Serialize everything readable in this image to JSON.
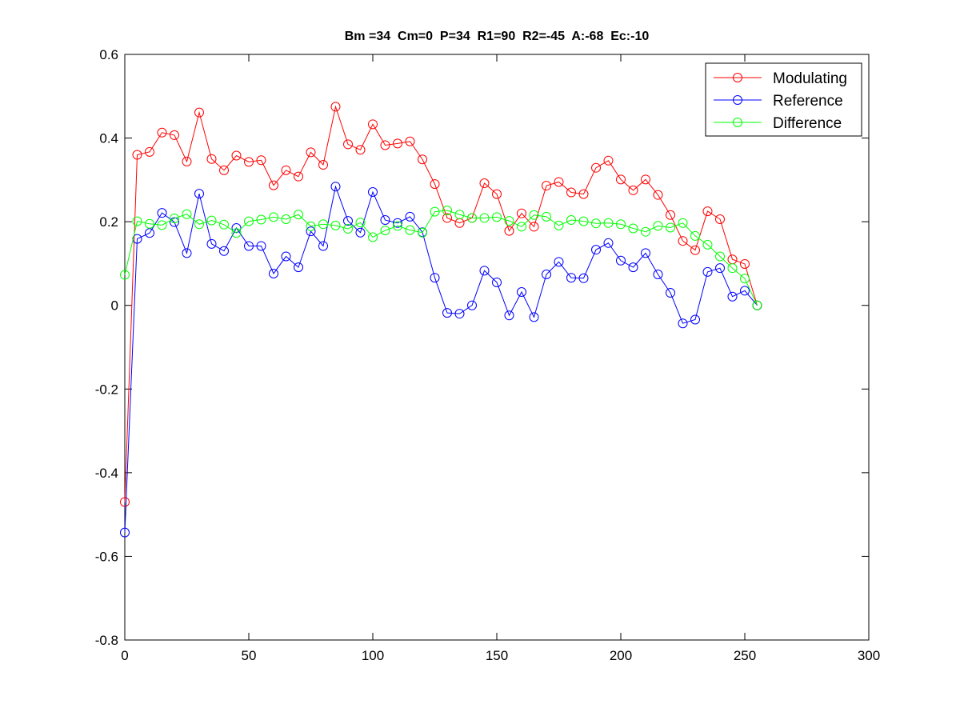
{
  "chart_data": {
    "type": "line",
    "title": "Bm =34  Cm=0  P=34  R1=90  R2=-45  A:-68  Ec:-10",
    "xlabel": "",
    "ylabel": "",
    "xlim": [
      0,
      300
    ],
    "ylim": [
      -0.8,
      0.6
    ],
    "xticks": [
      0,
      50,
      100,
      150,
      200,
      250,
      300
    ],
    "yticks": [
      -0.8,
      -0.6,
      -0.4,
      -0.2,
      0,
      0.2,
      0.4,
      0.6
    ],
    "xtick_labels": [
      "0",
      "50",
      "100",
      "150",
      "200",
      "250",
      "300"
    ],
    "ytick_labels": [
      "-0.8",
      "-0.6",
      "-0.4",
      "-0.2",
      "0",
      "0.2",
      "0.4",
      "0.6"
    ],
    "grid": false,
    "legend_position": "top-right",
    "marker": "circle",
    "x": [
      0,
      5,
      10,
      15,
      20,
      25,
      30,
      35,
      40,
      45,
      50,
      55,
      60,
      65,
      70,
      75,
      80,
      85,
      90,
      95,
      100,
      105,
      110,
      115,
      120,
      125,
      130,
      135,
      140,
      145,
      150,
      155,
      160,
      165,
      170,
      175,
      180,
      185,
      190,
      195,
      200,
      205,
      210,
      215,
      220,
      225,
      230,
      235,
      240,
      245,
      250,
      255
    ],
    "series": [
      {
        "name": "Modulating",
        "color": "#ff0000",
        "values": [
          -0.47,
          0.36,
          0.367,
          0.413,
          0.407,
          0.344,
          0.461,
          0.35,
          0.323,
          0.358,
          0.343,
          0.347,
          0.287,
          0.323,
          0.308,
          0.366,
          0.336,
          0.475,
          0.385,
          0.372,
          0.433,
          0.383,
          0.387,
          0.392,
          0.349,
          0.29,
          0.209,
          0.197,
          0.209,
          0.292,
          0.266,
          0.178,
          0.22,
          0.188,
          0.286,
          0.295,
          0.27,
          0.266,
          0.329,
          0.346,
          0.301,
          0.275,
          0.301,
          0.264,
          0.216,
          0.154,
          0.132,
          0.225,
          0.206,
          0.11,
          0.099,
          0.0
        ]
      },
      {
        "name": "Reference",
        "color": "#0000ff",
        "values": [
          -0.543,
          0.159,
          0.173,
          0.221,
          0.199,
          0.125,
          0.267,
          0.147,
          0.13,
          0.185,
          0.142,
          0.142,
          0.076,
          0.117,
          0.091,
          0.177,
          0.142,
          0.284,
          0.202,
          0.174,
          0.271,
          0.204,
          0.197,
          0.212,
          0.175,
          0.066,
          -0.018,
          -0.02,
          0.0,
          0.083,
          0.055,
          -0.024,
          0.032,
          -0.028,
          0.074,
          0.104,
          0.066,
          0.065,
          0.133,
          0.149,
          0.107,
          0.091,
          0.125,
          0.074,
          0.03,
          -0.043,
          -0.034,
          0.08,
          0.089,
          0.021,
          0.035,
          0.0
        ]
      },
      {
        "name": "Difference",
        "color": "#00ff00",
        "values": [
          0.073,
          0.201,
          0.195,
          0.192,
          0.208,
          0.218,
          0.194,
          0.203,
          0.193,
          0.173,
          0.201,
          0.205,
          0.211,
          0.206,
          0.217,
          0.189,
          0.194,
          0.191,
          0.183,
          0.198,
          0.163,
          0.179,
          0.19,
          0.18,
          0.174,
          0.224,
          0.227,
          0.217,
          0.209,
          0.209,
          0.211,
          0.202,
          0.188,
          0.216,
          0.212,
          0.191,
          0.204,
          0.201,
          0.196,
          0.197,
          0.194,
          0.184,
          0.176,
          0.19,
          0.186,
          0.197,
          0.166,
          0.145,
          0.117,
          0.089,
          0.064,
          0.0
        ]
      }
    ]
  }
}
